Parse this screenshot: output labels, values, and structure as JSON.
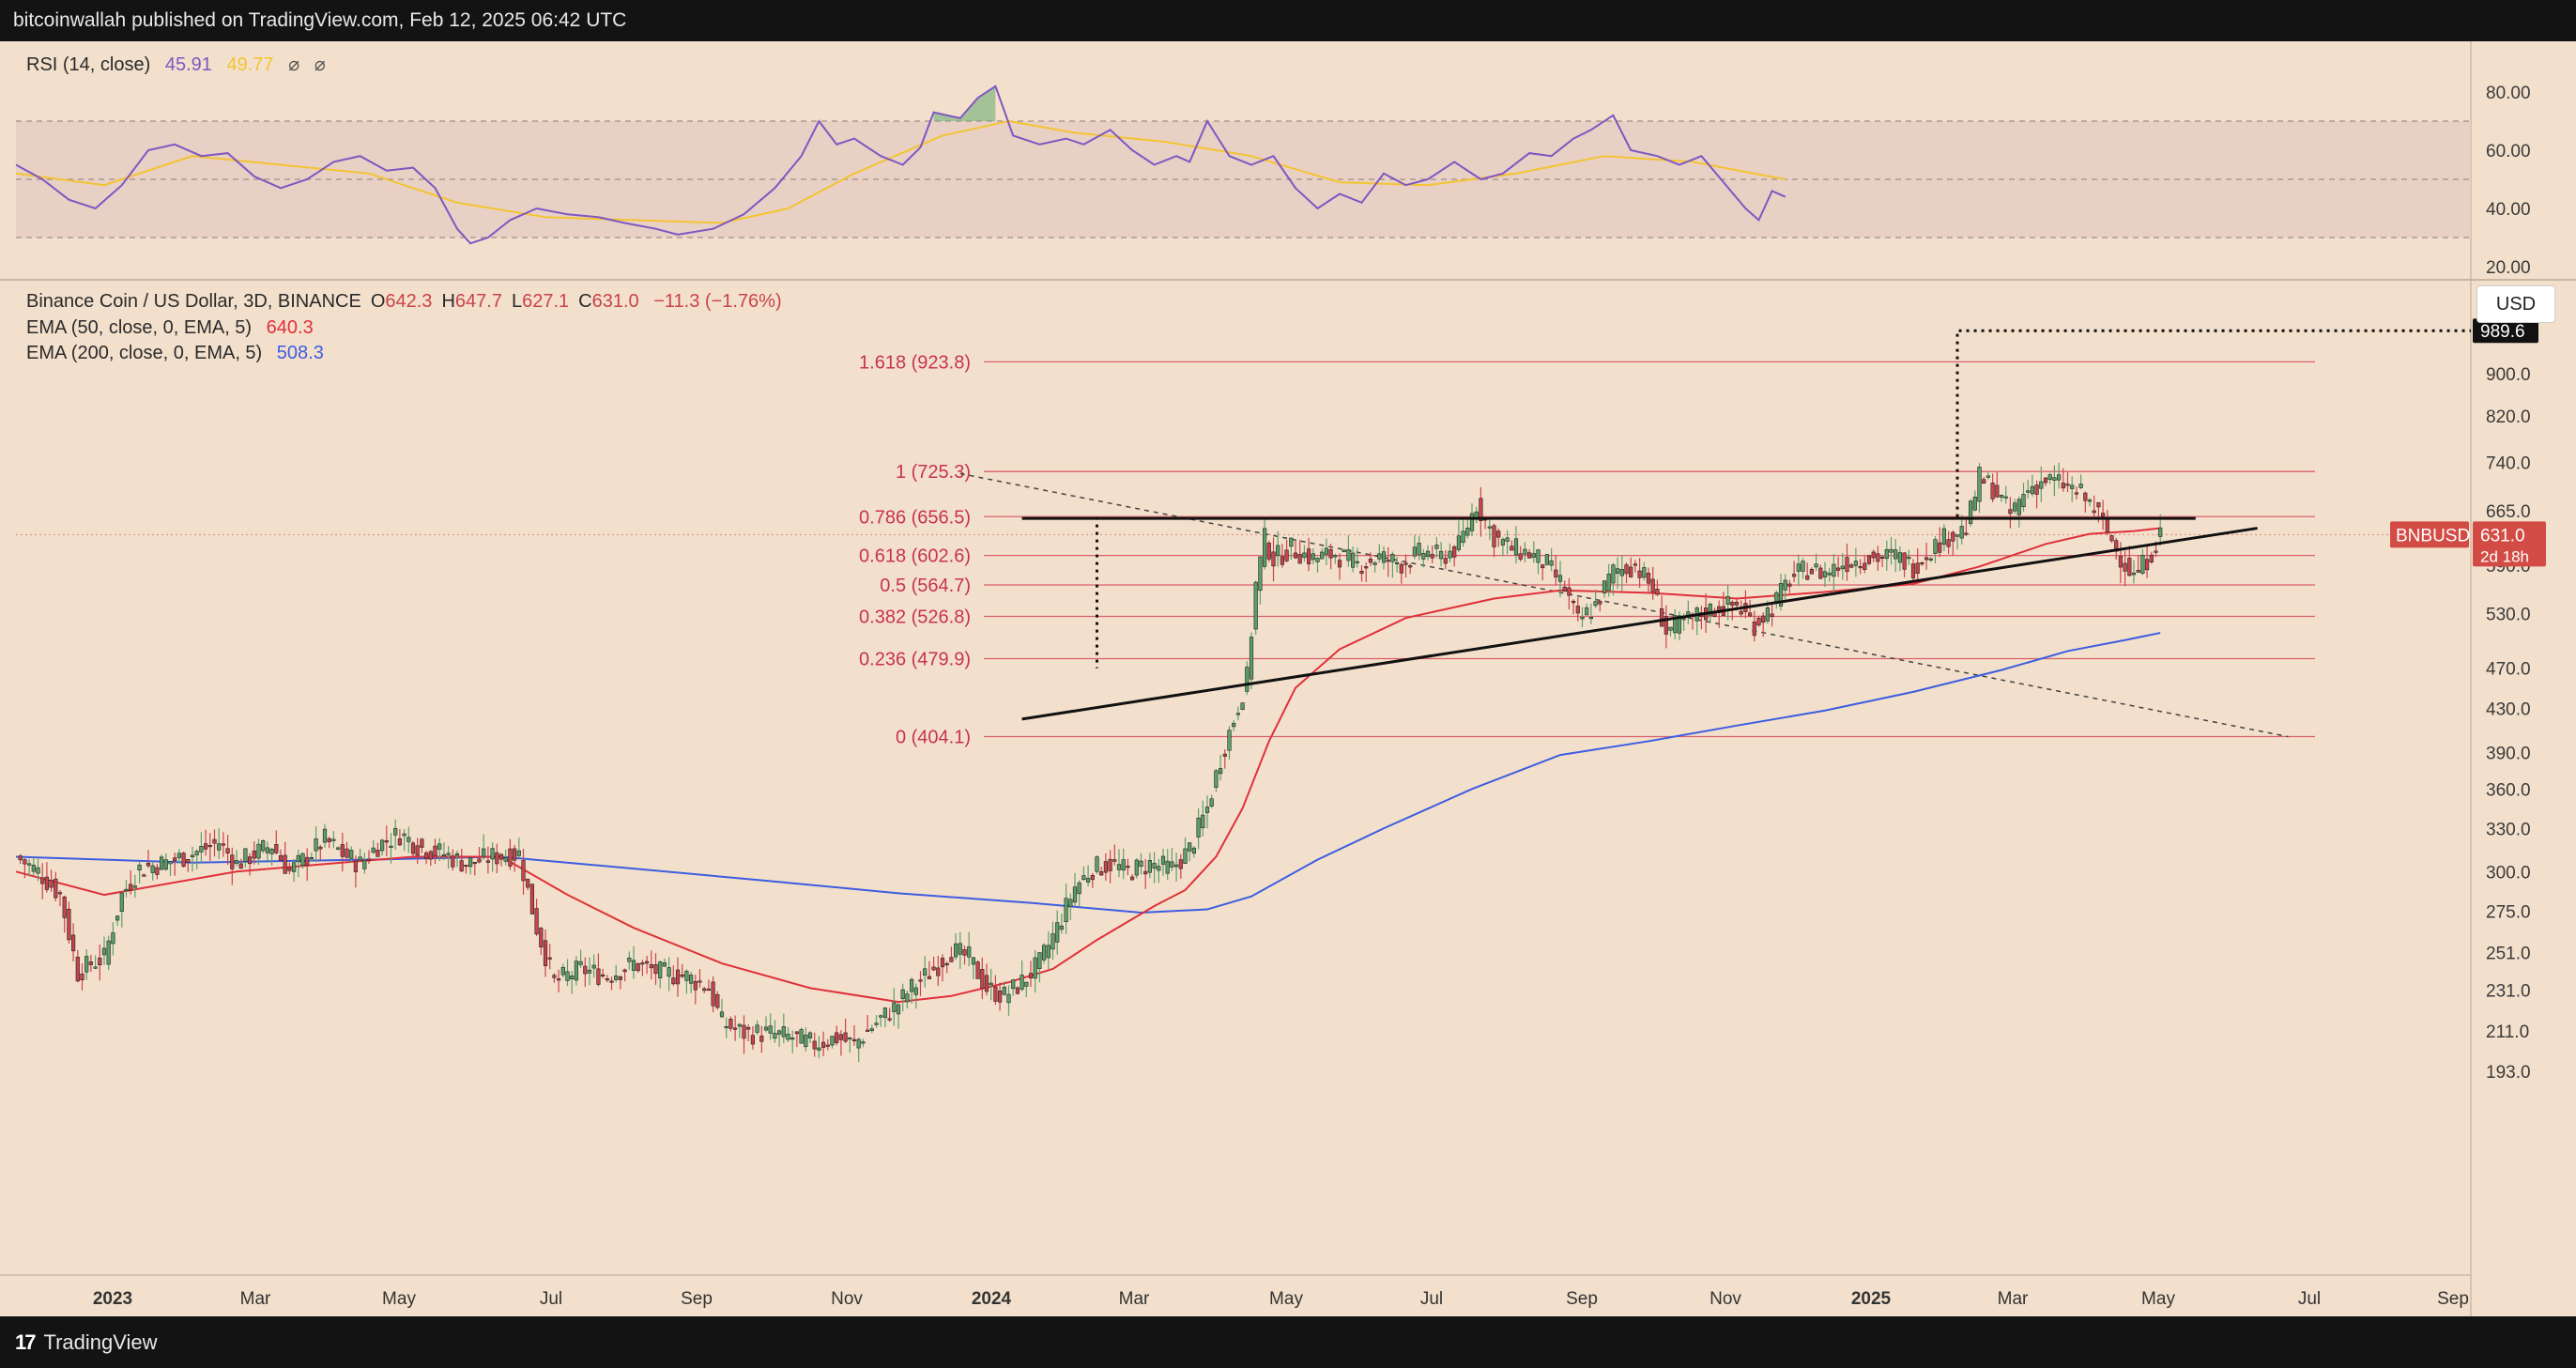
{
  "header": {
    "publisher": "bitcoinwallah published on TradingView.com, Feb 12, 2025 06:42 UTC"
  },
  "footer": {
    "brand": "TradingView",
    "logo": "17"
  },
  "rsi_legend": {
    "label": "RSI (14, close)",
    "value": "45.91",
    "ma_value": "49.77",
    "icons": [
      "⌀",
      "⌀"
    ]
  },
  "price_legend": {
    "symbol": "Binance Coin / US Dollar, 3D, BINANCE",
    "o_label": "O",
    "open": "642.3",
    "h_label": "H",
    "high": "647.7",
    "l_label": "L",
    "low": "627.1",
    "c_label": "C",
    "close": "631.0",
    "change": "−11.3 (−1.76%)",
    "ema50_label": "EMA (50, close, 0, EMA, 5)",
    "ema50_value": "640.3",
    "ema200_label": "EMA (200, close, 0, EMA, 5)",
    "ema200_value": "508.3"
  },
  "currency_button": "USD",
  "colors": {
    "background": "#f3e0cc",
    "up": "#5b9f68",
    "down": "#c9434a",
    "ema50": "#e0303a",
    "ema200": "#3d5de0",
    "rsi": "#7e57c2",
    "rsi_ma": "#f3c431",
    "fib": "#d64c5e"
  },
  "chart_data": [
    {
      "type": "line",
      "name": "RSI panel",
      "y_ticks": [
        "80.00",
        "60.00",
        "40.00",
        "20.00"
      ],
      "ylim": [
        20,
        84
      ],
      "bands": [
        70,
        50,
        30
      ],
      "rsi_points": [
        [
          0,
          55
        ],
        [
          6,
          50
        ],
        [
          12,
          43
        ],
        [
          18,
          40
        ],
        [
          24,
          48
        ],
        [
          30,
          60
        ],
        [
          36,
          62
        ],
        [
          42,
          58
        ],
        [
          48,
          59
        ],
        [
          54,
          51
        ],
        [
          60,
          47
        ],
        [
          66,
          50
        ],
        [
          72,
          56
        ],
        [
          78,
          58
        ],
        [
          84,
          53
        ],
        [
          90,
          54
        ],
        [
          95,
          47
        ],
        [
          100,
          33
        ],
        [
          103,
          28
        ],
        [
          107,
          30
        ],
        [
          112,
          36
        ],
        [
          118,
          40
        ],
        [
          125,
          38
        ],
        [
          132,
          37
        ],
        [
          138,
          35
        ],
        [
          145,
          33
        ],
        [
          150,
          31
        ],
        [
          158,
          33
        ],
        [
          165,
          38
        ],
        [
          172,
          47
        ],
        [
          178,
          58
        ],
        [
          182,
          70
        ],
        [
          186,
          62
        ],
        [
          190,
          64
        ],
        [
          196,
          58
        ],
        [
          201,
          55
        ],
        [
          205,
          61
        ],
        [
          208,
          73
        ],
        [
          214,
          71
        ],
        [
          218,
          78
        ],
        [
          222,
          82
        ],
        [
          226,
          65
        ],
        [
          232,
          62
        ],
        [
          238,
          64
        ],
        [
          242,
          62
        ],
        [
          248,
          67
        ],
        [
          253,
          60
        ],
        [
          258,
          55
        ],
        [
          263,
          58
        ],
        [
          266,
          56
        ],
        [
          270,
          70
        ],
        [
          275,
          58
        ],
        [
          280,
          55
        ],
        [
          285,
          58
        ],
        [
          290,
          47
        ],
        [
          295,
          40
        ],
        [
          300,
          45
        ],
        [
          305,
          42
        ],
        [
          310,
          52
        ],
        [
          315,
          48
        ],
        [
          320,
          50
        ],
        [
          326,
          56
        ],
        [
          332,
          50
        ],
        [
          337,
          52
        ],
        [
          343,
          59
        ],
        [
          348,
          58
        ],
        [
          353,
          64
        ],
        [
          357,
          67
        ],
        [
          362,
          72
        ],
        [
          366,
          60
        ],
        [
          372,
          58
        ],
        [
          377,
          55
        ],
        [
          382,
          58
        ],
        [
          387,
          49
        ],
        [
          392,
          40
        ],
        [
          395,
          36
        ],
        [
          398,
          46
        ],
        [
          401,
          44
        ]
      ],
      "rsi_ma_points": [
        [
          0,
          52
        ],
        [
          20,
          48
        ],
        [
          40,
          58
        ],
        [
          60,
          55
        ],
        [
          80,
          52
        ],
        [
          100,
          42
        ],
        [
          120,
          37
        ],
        [
          140,
          36
        ],
        [
          160,
          35
        ],
        [
          175,
          40
        ],
        [
          190,
          52
        ],
        [
          210,
          65
        ],
        [
          225,
          70
        ],
        [
          240,
          66
        ],
        [
          260,
          63
        ],
        [
          280,
          58
        ],
        [
          300,
          49
        ],
        [
          320,
          48
        ],
        [
          340,
          52
        ],
        [
          360,
          58
        ],
        [
          380,
          56
        ],
        [
          401,
          50
        ]
      ]
    },
    {
      "type": "candlestick",
      "title": "Binance Coin / US Dollar, 3D, BINANCE",
      "yscale": "log",
      "y_ticks": [
        "900.0",
        "820.0",
        "740.0",
        "665.0",
        "590.0",
        "530.0",
        "470.0",
        "430.0",
        "390.0",
        "360.0",
        "330.0",
        "300.0",
        "275.0",
        "251.0",
        "231.0",
        "211.0",
        "193.0"
      ],
      "x_ticks": [
        "2023",
        "Mar",
        "May",
        "Jul",
        "Sep",
        "Nov",
        "2024",
        "Mar",
        "May",
        "Jul",
        "Sep",
        "Nov",
        "2025",
        "Mar",
        "May",
        "Jul",
        "Sep"
      ],
      "price_tags": [
        {
          "label": "989.6",
          "value": 989.6
        },
        {
          "label": "631.0",
          "sub": "2d 18h",
          "value": 631.0
        },
        {
          "label": "BNBUSD",
          "value": 631.0
        }
      ],
      "fib_levels": [
        {
          "label": "1.618 (923.8)",
          "value": 923.8
        },
        {
          "label": "1 (725.3)",
          "value": 725.3
        },
        {
          "label": "0.786 (656.5)",
          "value": 656.5
        },
        {
          "label": "0.618 (602.6)",
          "value": 602.6
        },
        {
          "label": "0.5 (564.7)",
          "value": 564.7
        },
        {
          "label": "0.382 (526.8)",
          "value": 526.8
        },
        {
          "label": "0.236 (479.9)",
          "value": 479.9
        },
        {
          "label": "0 (404.1)",
          "value": 404.1
        }
      ],
      "price_path": [
        [
          0,
          310
        ],
        [
          5,
          300
        ],
        [
          10,
          285
        ],
        [
          14,
          240
        ],
        [
          17,
          245
        ],
        [
          20,
          248
        ],
        [
          24,
          285
        ],
        [
          28,
          302
        ],
        [
          34,
          306
        ],
        [
          40,
          312
        ],
        [
          46,
          320
        ],
        [
          50,
          305
        ],
        [
          54,
          312
        ],
        [
          58,
          318
        ],
        [
          62,
          300
        ],
        [
          66,
          310
        ],
        [
          70,
          322
        ],
        [
          74,
          312
        ],
        [
          78,
          305
        ],
        [
          82,
          318
        ],
        [
          87,
          326
        ],
        [
          92,
          316
        ],
        [
          97,
          312
        ],
        [
          102,
          305
        ],
        [
          108,
          310
        ],
        [
          114,
          312
        ],
        [
          118,
          265
        ],
        [
          122,
          235
        ],
        [
          128,
          242
        ],
        [
          134,
          238
        ],
        [
          140,
          245
        ],
        [
          146,
          240
        ],
        [
          152,
          238
        ],
        [
          157,
          232
        ],
        [
          160,
          215
        ],
        [
          165,
          210
        ],
        [
          170,
          210
        ],
        [
          176,
          208
        ],
        [
          181,
          205
        ],
        [
          186,
          208
        ],
        [
          190,
          205
        ],
        [
          195,
          215
        ],
        [
          199,
          222
        ],
        [
          203,
          232
        ],
        [
          208,
          242
        ],
        [
          212,
          252
        ],
        [
          216,
          248
        ],
        [
          220,
          232
        ],
        [
          224,
          228
        ],
        [
          228,
          235
        ],
        [
          232,
          245
        ],
        [
          236,
          265
        ],
        [
          240,
          290
        ],
        [
          244,
          302
        ],
        [
          248,
          305
        ],
        [
          252,
          300
        ],
        [
          257,
          305
        ],
        [
          262,
          302
        ],
        [
          266,
          315
        ],
        [
          270,
          345
        ],
        [
          273,
          385
        ],
        [
          276,
          420
        ],
        [
          279,
          460
        ],
        [
          281,
          565
        ],
        [
          283,
          625
        ],
        [
          285,
          598
        ],
        [
          289,
          612
        ],
        [
          294,
          598
        ],
        [
          299,
          605
        ],
        [
          304,
          590
        ],
        [
          309,
          600
        ],
        [
          314,
          592
        ],
        [
          319,
          608
        ],
        [
          323,
          600
        ],
        [
          327,
          615
        ],
        [
          331,
          675
        ],
        [
          335,
          628
        ],
        [
          339,
          612
        ],
        [
          343,
          605
        ],
        [
          347,
          590
        ],
        [
          351,
          560
        ],
        [
          354,
          520
        ],
        [
          358,
          540
        ],
        [
          362,
          582
        ],
        [
          367,
          590
        ],
        [
          371,
          560
        ],
        [
          374,
          510
        ],
        [
          378,
          520
        ],
        [
          382,
          530
        ],
        [
          386,
          538
        ],
        [
          390,
          540
        ],
        [
          394,
          518
        ],
        [
          398,
          538
        ],
        [
          402,
          572
        ],
        [
          406,
          585
        ],
        [
          410,
          580
        ],
        [
          414,
          592
        ],
        [
          418,
          598
        ],
        [
          422,
          600
        ],
        [
          426,
          602
        ],
        [
          430,
          588
        ],
        [
          434,
          612
        ],
        [
          438,
          630
        ],
        [
          442,
          640
        ],
        [
          445,
          715
        ],
        [
          448,
          700
        ],
        [
          452,
          660
        ],
        [
          456,
          698
        ],
        [
          460,
          712
        ],
        [
          464,
          705
        ],
        [
          468,
          690
        ],
        [
          472,
          660
        ],
        [
          476,
          610
        ],
        [
          480,
          575
        ],
        [
          483,
          598
        ],
        [
          486,
          631
        ]
      ],
      "ema50_path": [
        [
          0,
          300
        ],
        [
          20,
          285
        ],
        [
          50,
          300
        ],
        [
          70,
          305
        ],
        [
          90,
          310
        ],
        [
          110,
          310
        ],
        [
          125,
          285
        ],
        [
          140,
          265
        ],
        [
          160,
          245
        ],
        [
          180,
          232
        ],
        [
          200,
          225
        ],
        [
          212,
          228
        ],
        [
          225,
          235
        ],
        [
          235,
          242
        ],
        [
          245,
          258
        ],
        [
          258,
          278
        ],
        [
          265,
          288
        ],
        [
          272,
          310
        ],
        [
          278,
          345
        ],
        [
          284,
          400
        ],
        [
          290,
          450
        ],
        [
          300,
          490
        ],
        [
          315,
          525
        ],
        [
          335,
          548
        ],
        [
          350,
          558
        ],
        [
          370,
          555
        ],
        [
          390,
          548
        ],
        [
          410,
          556
        ],
        [
          430,
          566
        ],
        [
          445,
          588
        ],
        [
          460,
          618
        ],
        [
          470,
          632
        ],
        [
          480,
          636
        ],
        [
          486,
          640
        ]
      ],
      "ema200_path": [
        [
          0,
          310
        ],
        [
          40,
          306
        ],
        [
          80,
          308
        ],
        [
          110,
          310
        ],
        [
          140,
          302
        ],
        [
          170,
          294
        ],
        [
          200,
          286
        ],
        [
          230,
          280
        ],
        [
          255,
          274
        ],
        [
          270,
          276
        ],
        [
          280,
          284
        ],
        [
          295,
          308
        ],
        [
          310,
          330
        ],
        [
          330,
          360
        ],
        [
          350,
          388
        ],
        [
          370,
          400
        ],
        [
          390,
          414
        ],
        [
          410,
          428
        ],
        [
          430,
          446
        ],
        [
          450,
          468
        ],
        [
          465,
          488
        ],
        [
          478,
          500
        ],
        [
          486,
          508
        ]
      ],
      "annotations": {
        "resistance": {
          "x": [
            228,
            494
          ],
          "value": 654
        },
        "support": {
          "x": [
            228,
            508
          ],
          "values": [
            420,
            640
          ]
        },
        "dotted_trend": {
          "x": [
            214,
            515
          ],
          "values": [
            722,
            404
          ]
        },
        "target_value": 989.6
      }
    }
  ]
}
